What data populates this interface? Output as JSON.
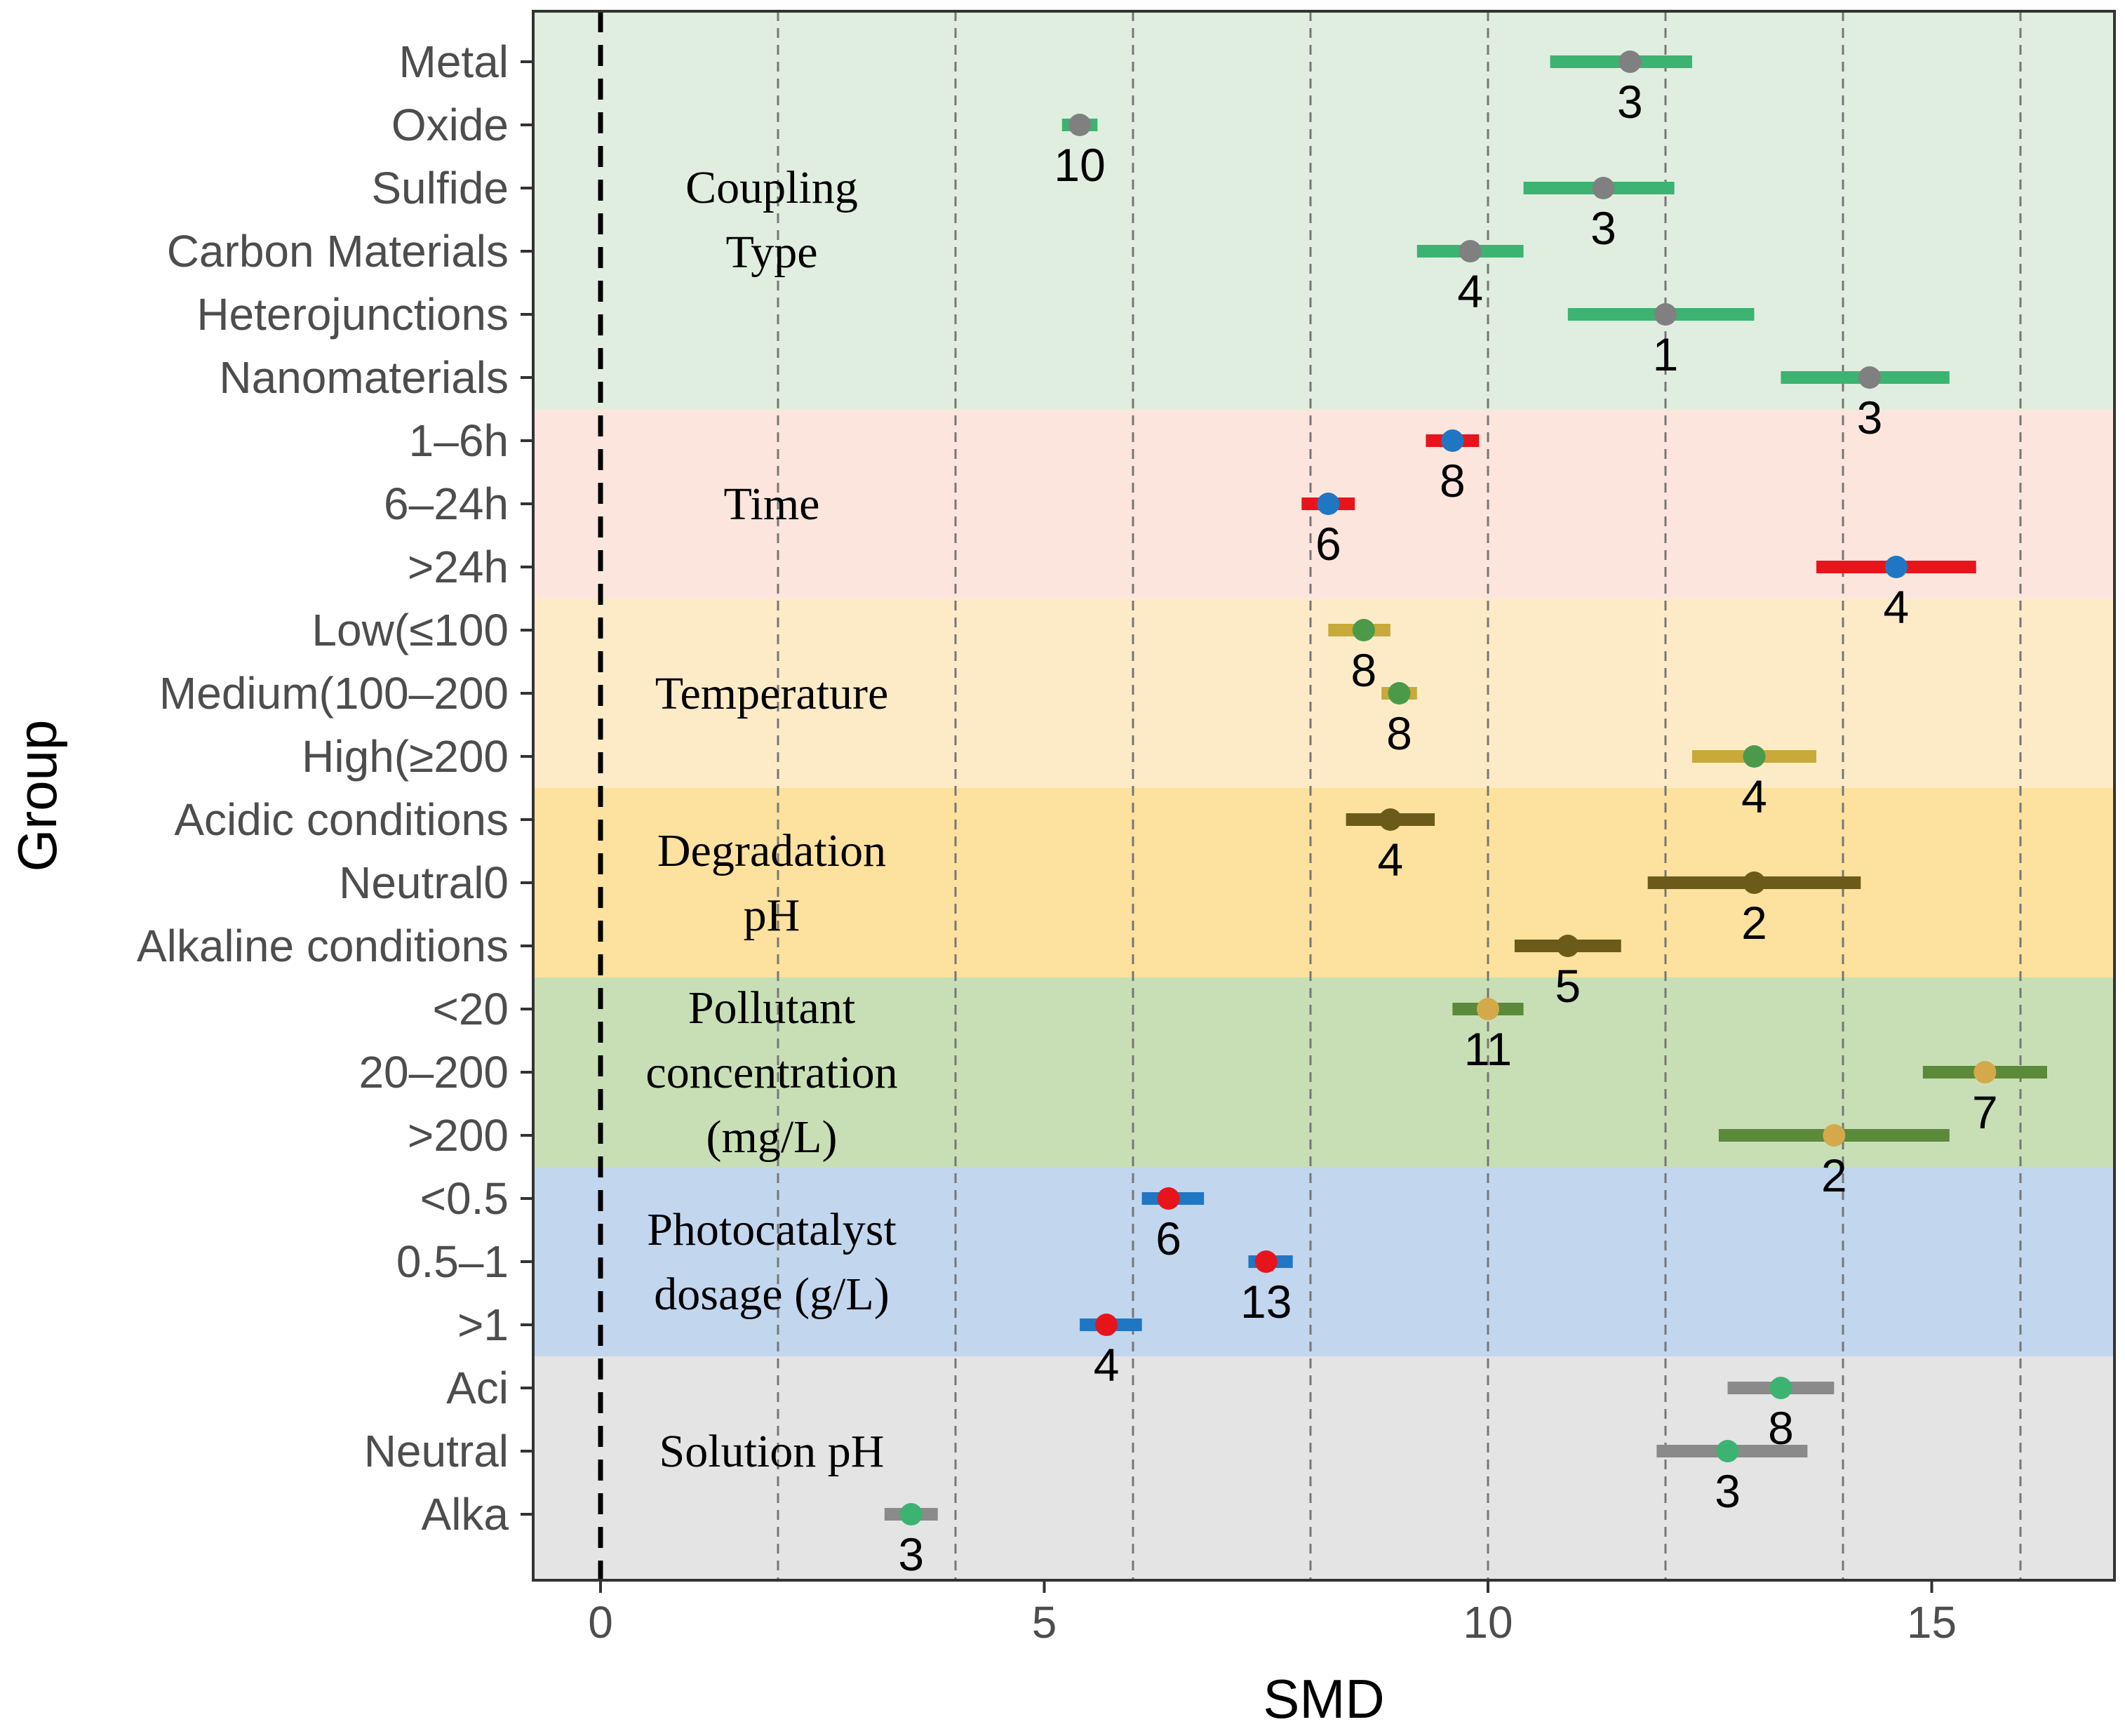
{
  "chart_data": {
    "type": "forest",
    "title": "",
    "xlabel": "SMD",
    "ylabel": "Group",
    "xlim": [
      -1.5,
      17
    ],
    "xticks": [
      0,
      5,
      10,
      15
    ],
    "xtick_labels": [
      "0",
      "5",
      "10",
      "15"
    ],
    "vertical_dashed_lines": [
      2,
      4,
      6,
      8,
      10,
      12,
      14,
      16
    ],
    "reference_line": 0,
    "sections": [
      {
        "name": "Coupling Type",
        "label_lines": [
          "Coupling",
          "Type"
        ],
        "bg": "#e0eedf",
        "bar_color": "#3cb371",
        "dot_color": "#808080",
        "rows": [
          {
            "label": "Metal",
            "smd": 11.6,
            "lo": 10.7,
            "hi": 12.3,
            "n": "3"
          },
          {
            "label": "Oxide",
            "smd": 5.4,
            "lo": 5.2,
            "hi": 5.6,
            "n": "10"
          },
          {
            "label": "Sulfide",
            "smd": 11.3,
            "lo": 10.4,
            "hi": 12.1,
            "n": "3"
          },
          {
            "label": "Carbon Materials",
            "smd": 9.8,
            "lo": 9.2,
            "hi": 10.4,
            "n": "4"
          },
          {
            "label": "Heterojunctions",
            "smd": 12.0,
            "lo": 10.9,
            "hi": 13.0,
            "n": "1"
          },
          {
            "label": "Nanomaterials ",
            "smd": 14.3,
            "lo": 13.3,
            "hi": 15.2,
            "n": "3"
          }
        ]
      },
      {
        "name": "Time",
        "label_lines": [
          "Time"
        ],
        "bg": "#fbe5dc",
        "bar_color": "#e8141c",
        "dot_color": "#1f77c4",
        "rows": [
          {
            "label": "1–6h",
            "smd": 9.6,
            "lo": 9.3,
            "hi": 9.9,
            "n": "8"
          },
          {
            "label": "6–24h",
            "smd": 8.2,
            "lo": 7.9,
            "hi": 8.5,
            "n": "6"
          },
          {
            "label": ">24h",
            "smd": 14.6,
            "lo": 13.7,
            "hi": 15.5,
            "n": "4"
          }
        ]
      },
      {
        "name": "Temperature",
        "label_lines": [
          "Temperature"
        ],
        "bg": "#fdebc8",
        "bar_color": "#c8a93a",
        "dot_color": "#4a9a4a",
        "rows": [
          {
            "label": "Low(≤100",
            "smd": 8.6,
            "lo": 8.2,
            "hi": 8.9,
            "n": "8"
          },
          {
            "label": "Medium(100–200",
            "smd": 9.0,
            "lo": 8.8,
            "hi": 9.2,
            "n": "8"
          },
          {
            "label": "High(≥200",
            "smd": 13.0,
            "lo": 12.3,
            "hi": 13.7,
            "n": "4"
          }
        ]
      },
      {
        "name": "Degradation pH",
        "label_lines": [
          "Degradation",
          "pH"
        ],
        "bg": "#fde19e",
        "bar_color": "#6b5a1a",
        "dot_color": "#6b5a1a",
        "rows": [
          {
            "label": "Acidic conditions",
            "smd": 8.9,
            "lo": 8.4,
            "hi": 9.4,
            "n": "4"
          },
          {
            "label": "Neutral0",
            "smd": 13.0,
            "lo": 11.8,
            "hi": 14.2,
            "n": "2"
          },
          {
            "label": "Alkaline conditions",
            "smd": 10.9,
            "lo": 10.3,
            "hi": 11.5,
            "n": "5"
          }
        ]
      },
      {
        "name": "Pollutant concentration (mg/L)",
        "label_lines": [
          "Pollutant",
          "concentration",
          "(mg/L)"
        ],
        "bg": "#c8dfb5",
        "bar_color": "#5a8a3a",
        "dot_color": "#d4a94a",
        "rows": [
          {
            "label": "<20",
            "smd": 10.0,
            "lo": 9.6,
            "hi": 10.4,
            "n": "11"
          },
          {
            "label": "20–200",
            "smd": 15.6,
            "lo": 14.9,
            "hi": 16.3,
            "n": "7"
          },
          {
            "label": ">200",
            "smd": 13.9,
            "lo": 12.6,
            "hi": 15.2,
            "n": "2"
          }
        ]
      },
      {
        "name": "Photocatalyst dosage (g/L)",
        "label_lines": [
          "Photocatalyst",
          "dosage (g/L)"
        ],
        "bg": "#c2d6ee",
        "bar_color": "#1f77c4",
        "dot_color": "#e8141c",
        "rows": [
          {
            "label": "<0.5",
            "smd": 6.4,
            "lo": 6.1,
            "hi": 6.8,
            "n": "6"
          },
          {
            "label": "0.5–1",
            "smd": 7.5,
            "lo": 7.3,
            "hi": 7.8,
            "n": "13"
          },
          {
            "label": ">1",
            "smd": 5.7,
            "lo": 5.4,
            "hi": 6.1,
            "n": "4"
          }
        ]
      },
      {
        "name": "Solution pH",
        "label_lines": [
          "Solution pH"
        ],
        "bg": "#e4e4e4",
        "bar_color": "#8a8a8a",
        "dot_color": "#3cb371",
        "rows": [
          {
            "label": "Aci",
            "smd": 13.3,
            "lo": 12.7,
            "hi": 13.9,
            "n": "8"
          },
          {
            "label": "Neutral",
            "smd": 12.7,
            "lo": 11.9,
            "hi": 13.6,
            "n": "3"
          },
          {
            "label": "Alka",
            "smd": 3.5,
            "lo": 3.2,
            "hi": 3.8,
            "n": "3"
          }
        ]
      }
    ]
  }
}
